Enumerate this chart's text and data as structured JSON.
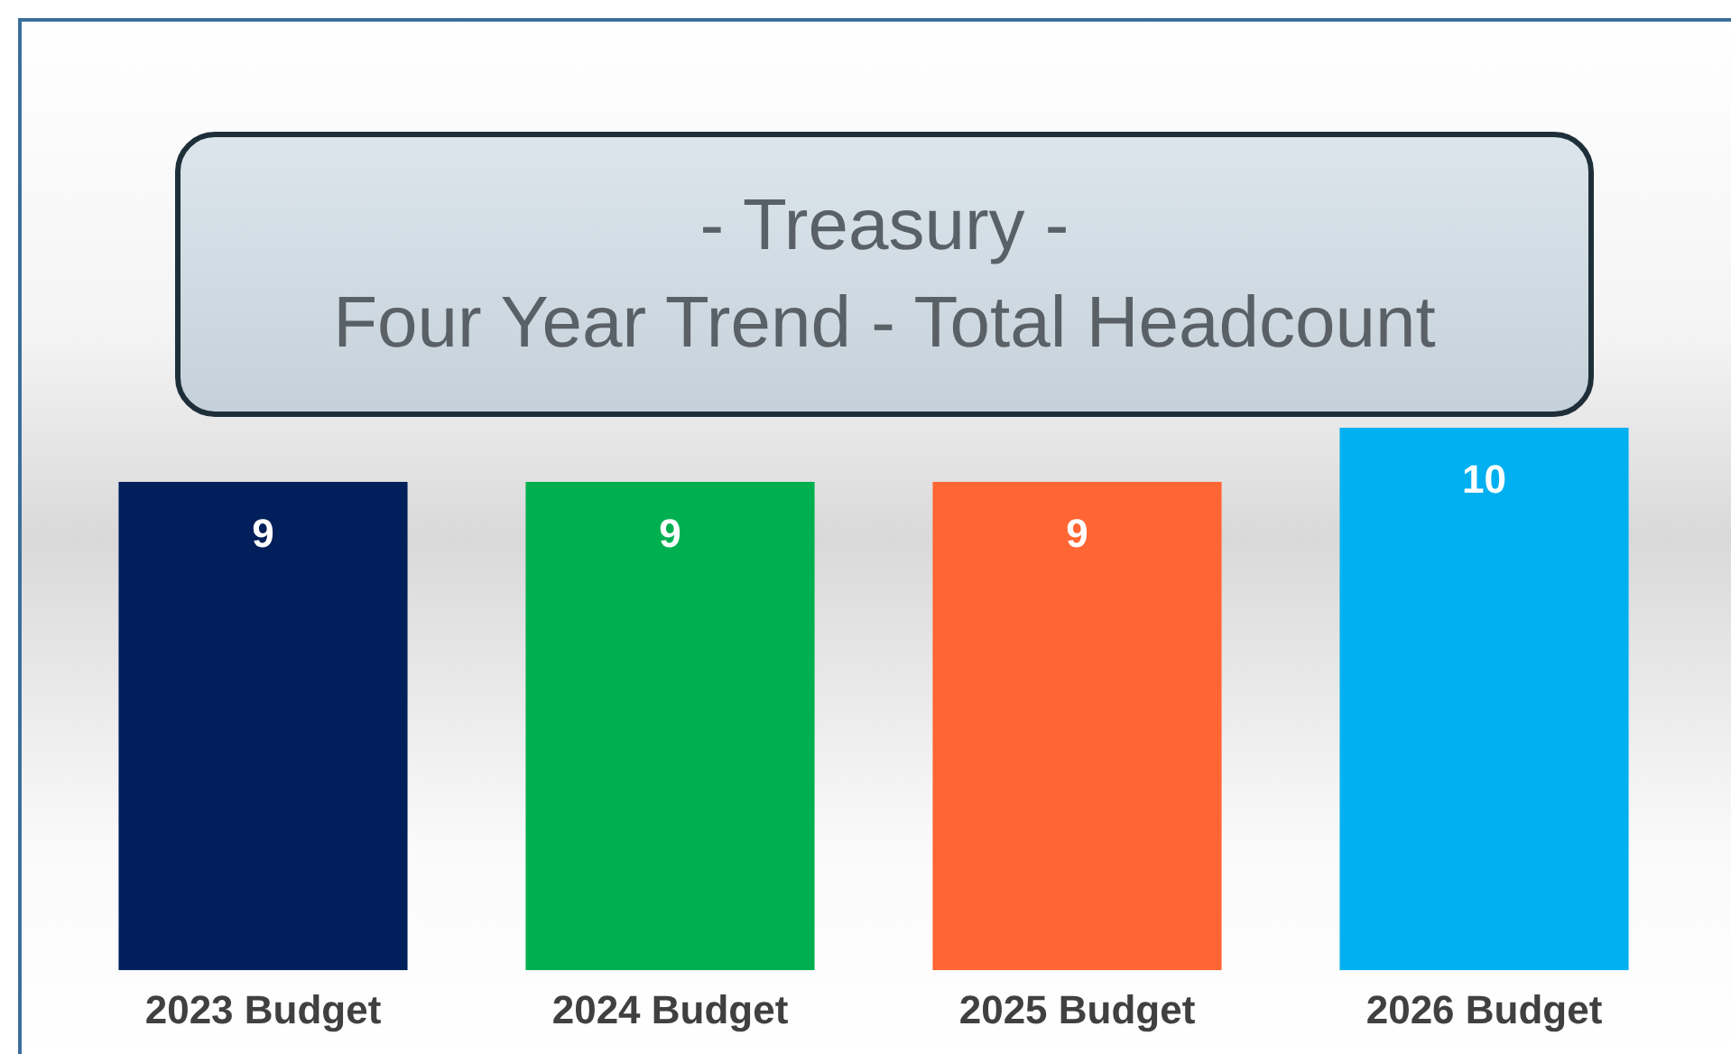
{
  "chart_data": {
    "type": "bar",
    "title": "- Treasury -",
    "subtitle": "Four Year Trend - Total Headcount",
    "categories": [
      "2023 Budget",
      "2024 Budget",
      "2025 Budget",
      "2026 Budget"
    ],
    "values": [
      9,
      9,
      9,
      10
    ],
    "colors": [
      "#001f5b",
      "#00b050",
      "#ff6633",
      "#00b0f0"
    ],
    "data_labels": true,
    "grid": false,
    "legend": false
  }
}
